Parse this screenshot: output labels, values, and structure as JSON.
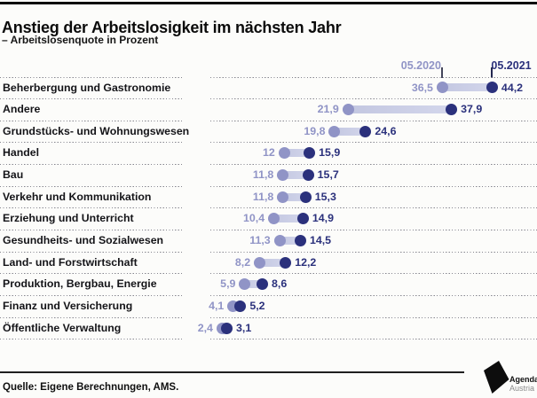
{
  "header": {
    "title": "Anstieg der Arbeitslosigkeit im nächsten Jahr",
    "subtitle": "– Arbeitslosenquote in Prozent"
  },
  "chart_data": {
    "type": "dumbbell",
    "title": "Anstieg der Arbeitslosigkeit im nächsten Jahr",
    "subtitle": "– Arbeitslosenquote in Prozent",
    "unit": "percent",
    "value_format": "decimal-comma",
    "xlim": [
      0,
      50
    ],
    "legend_position": "top, as column headers above first row with tick markers",
    "grid": "dotted horizontal row separators",
    "categories": [
      "Beherbergung und Gastronomie",
      "Andere",
      "Grundstücks- und Wohnungswesen",
      "Handel",
      "Bau",
      "Verkehr und Kommunikation",
      "Erziehung und Unterricht",
      "Gesundheits- und Sozialwesen",
      "Land- und Forstwirtschaft",
      "Produktion, Bergbau, Energie",
      "Finanz und Versicherung",
      "Öffentliche Verwaltung"
    ],
    "series": [
      {
        "name": "05.2020",
        "values": [
          36.5,
          21.9,
          19.8,
          12,
          11.8,
          11.8,
          10.4,
          11.3,
          8.2,
          5.9,
          4.1,
          2.4
        ]
      },
      {
        "name": "05.2021",
        "values": [
          44.2,
          37.9,
          24.6,
          15.9,
          15.7,
          15.3,
          14.9,
          14.5,
          12.2,
          8.6,
          5.2,
          3.1
        ]
      }
    ]
  },
  "footer": {
    "source": "Quelle: Eigene Berechnungen, AMS.",
    "logo_line1": "Agenda",
    "logo_line2": "Austria"
  },
  "colors": {
    "series_2020": "#9094c6",
    "series_2021": "#2b317c",
    "bar_gradient_from": "#c2c6e0",
    "bar_gradient_to": "#d4d7ec",
    "separator_dotted": "#85858d",
    "title_text": "#0b0b0b"
  }
}
